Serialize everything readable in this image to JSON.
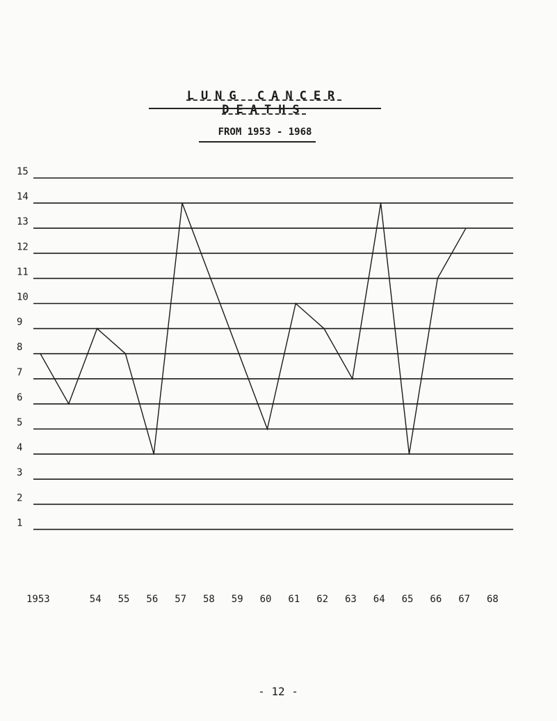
{
  "page": {
    "title": "LUNG  CANCER  DEATHS",
    "subtitle": "FROM 1953 - 1968",
    "page_number": "- 12 -"
  },
  "chart_data": {
    "type": "line",
    "title": "LUNG CANCER DEATHS",
    "subtitle": "FROM 1953 - 1968",
    "xlabel": "",
    "ylabel": "",
    "x_tick_labels": [
      "1953",
      "54",
      "55",
      "56",
      "57",
      "58",
      "59",
      "60",
      "61",
      "62",
      "63",
      "64",
      "65",
      "66",
      "67",
      "68"
    ],
    "y_tick_labels": [
      "15",
      "14",
      "13",
      "12",
      "11",
      "10",
      "9",
      "8",
      "7",
      "6",
      "5",
      "4",
      "3",
      "2",
      "1"
    ],
    "series": [
      {
        "x": [
          1953,
          1954,
          1955,
          1956,
          1957,
          1958,
          1959,
          1960,
          1961,
          1962,
          1963,
          1964,
          1965,
          1966,
          1967,
          1968
        ],
        "values": [
          8,
          6,
          9,
          8,
          4,
          14,
          11,
          8,
          5,
          10,
          9,
          7,
          14,
          4,
          11,
          13
        ]
      }
    ],
    "ylim": [
      1,
      15
    ],
    "xlim": [
      1953,
      1968
    ],
    "grid": true,
    "line_color": "#1a1a1a"
  }
}
